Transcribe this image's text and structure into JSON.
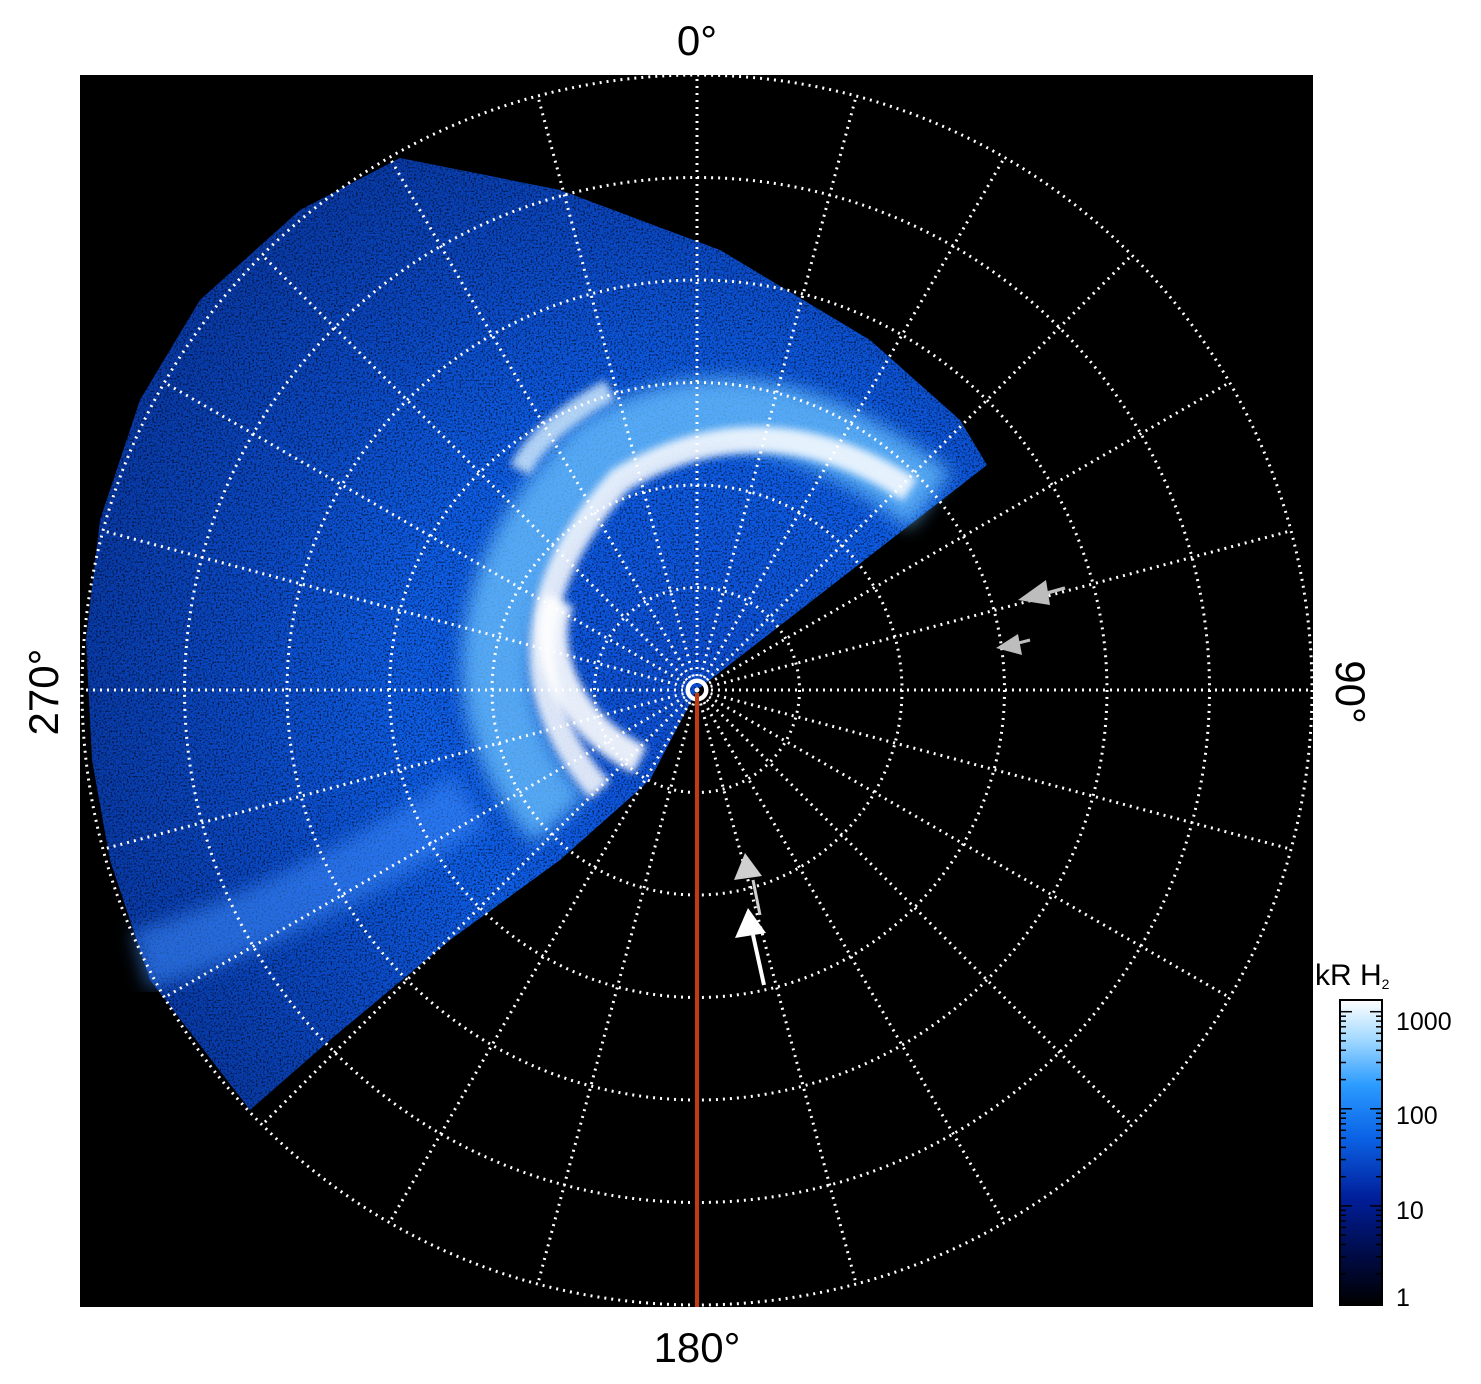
{
  "figure": {
    "labels": {
      "top": "0°",
      "bottom": "180°",
      "left": "270°",
      "right": "90°"
    },
    "colorbar": {
      "unit_main": "kR H",
      "unit_sub": "2",
      "ticks": [
        "1000",
        "100",
        "10",
        "1"
      ],
      "tick_values": [
        1000,
        100,
        10,
        1
      ],
      "scale": "log"
    },
    "grid": {
      "rings": 6,
      "spokes_every_deg": 15,
      "style": "dotted",
      "color": "#ffffff"
    },
    "meridian_line_color": "#c23a12",
    "arrow_colors": {
      "bright": "#ffffff",
      "dim": "#bdbdbd"
    }
  }
}
